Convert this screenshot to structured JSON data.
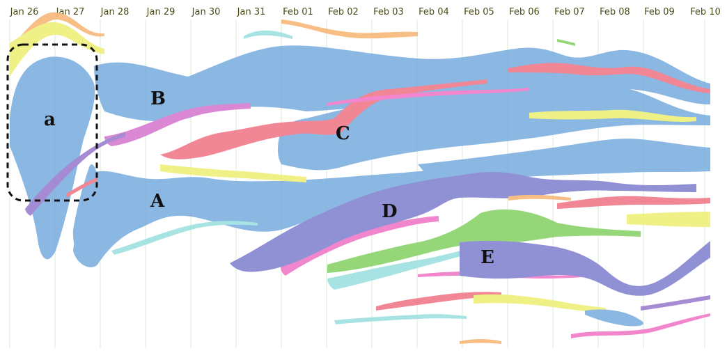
{
  "dates": [
    "Jan 26",
    "Jan 27",
    "Jan 28",
    "Jan 29",
    "Jan 30",
    "Jan 31",
    "Feb 01",
    "Feb 02",
    "Feb 03",
    "Feb 04",
    "Feb 05",
    "Feb 06",
    "Feb 07",
    "Feb 08",
    "Feb 09",
    "Feb 10"
  ],
  "labels": {
    "a": "a",
    "A": "A",
    "B": "B",
    "C": "C",
    "D": "D",
    "E": "E"
  },
  "colors": {
    "blue": "#7fb0e0",
    "red": "#f07a8a",
    "purple": "#8585d0",
    "violet": "#9b7fd0",
    "pink": "#f07ac8",
    "magenta": "#d77cd0",
    "yellow": "#eef07a",
    "orange": "#f7b77a",
    "green": "#8ad36a",
    "cyan": "#9fe0e0",
    "gridline": "#cfe8c8",
    "dash": "#111111"
  }
}
